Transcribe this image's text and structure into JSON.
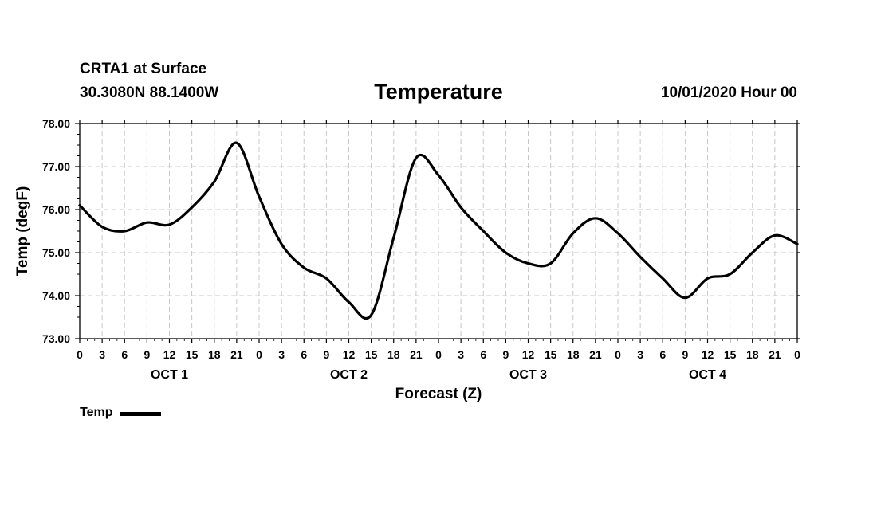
{
  "header": {
    "station": "CRTA1 at Surface",
    "coords": "30.3080N 88.1400W",
    "title": "Temperature",
    "run": "10/01/2020 Hour 00"
  },
  "chart_data": {
    "type": "line",
    "title": "Temperature",
    "xlabel": "Forecast (Z)",
    "ylabel": "Temp (degF)",
    "ylim": [
      73.0,
      78.0
    ],
    "yticks": [
      "73.00",
      "74.00",
      "75.00",
      "76.00",
      "77.00",
      "78.00"
    ],
    "xlim": [
      0,
      96
    ],
    "xticks": [
      "0",
      "3",
      "6",
      "9",
      "12",
      "15",
      "18",
      "21",
      "0",
      "3",
      "6",
      "9",
      "12",
      "15",
      "18",
      "21",
      "0",
      "3",
      "6",
      "9",
      "12",
      "15",
      "18",
      "21",
      "0",
      "3",
      "6",
      "9",
      "12",
      "15",
      "18",
      "21",
      "0"
    ],
    "day_labels": [
      {
        "label": "OCT 1",
        "hour": 12
      },
      {
        "label": "OCT 2",
        "hour": 36
      },
      {
        "label": "OCT 3",
        "hour": 60
      },
      {
        "label": "OCT 4",
        "hour": 84
      }
    ],
    "grid": true,
    "legend": "bottom-left",
    "series": [
      {
        "name": "Temp",
        "color": "#000000",
        "x": [
          0,
          3,
          6,
          9,
          12,
          15,
          18,
          21,
          24,
          27,
          30,
          33,
          36,
          39,
          42,
          45,
          48,
          51,
          54,
          57,
          60,
          63,
          66,
          69,
          72,
          75,
          78,
          81,
          84,
          87,
          90,
          93,
          96
        ],
        "values": [
          76.1,
          75.6,
          75.5,
          75.7,
          75.65,
          76.05,
          76.65,
          77.55,
          76.3,
          75.2,
          74.65,
          74.4,
          73.85,
          73.55,
          75.35,
          77.2,
          76.8,
          76.05,
          75.5,
          75.0,
          74.75,
          74.75,
          75.45,
          75.8,
          75.45,
          74.9,
          74.4,
          73.95,
          74.4,
          74.5,
          75.0,
          75.4,
          75.2
        ]
      }
    ]
  },
  "legend_label": "Temp"
}
